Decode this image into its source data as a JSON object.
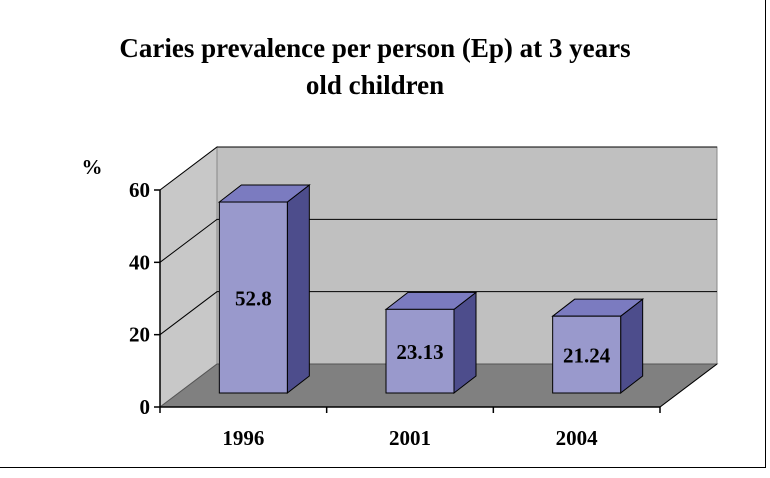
{
  "chart_data": {
    "type": "bar",
    "title": "Caries prevalence per person (Ep) at 3 years old children",
    "title_lines": [
      "Caries prevalence per person (Ep) at 3 years",
      "old children"
    ],
    "ylabel": "%",
    "xlabel": "",
    "categories": [
      "1996",
      "2001",
      "2004"
    ],
    "values": [
      52.8,
      23.13,
      21.24
    ],
    "data_labels": [
      "52.8",
      "23.13",
      "21.24"
    ],
    "ylim": [
      0,
      60
    ],
    "yticks": [
      "0",
      "20",
      "40",
      "60"
    ],
    "grid": true,
    "legend": "none",
    "style": "3d-column"
  },
  "colors": {
    "bar_front": "#9999cc",
    "bar_top": "#7b7bc0",
    "bar_side": "#4d4d8c",
    "back_wall": "#c0c0c0",
    "side_wall": "#c8c8c8",
    "floor": "#808080",
    "gridline": "#000000"
  }
}
